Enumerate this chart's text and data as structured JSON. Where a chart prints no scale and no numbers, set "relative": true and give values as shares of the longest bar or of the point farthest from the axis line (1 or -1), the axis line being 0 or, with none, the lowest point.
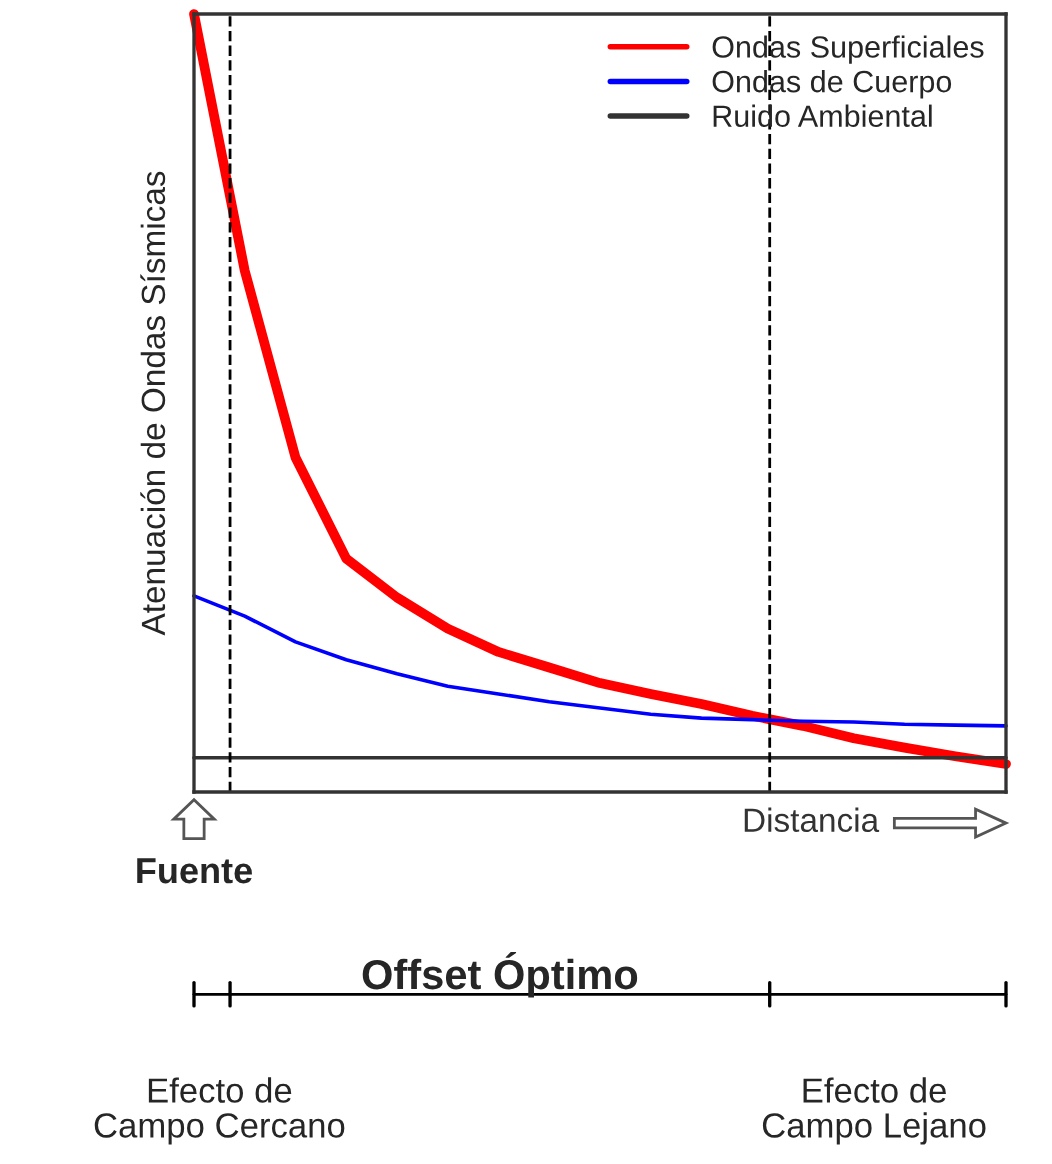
{
  "chart_data": {
    "type": "line",
    "relative": true,
    "ylabel": "Atenuación de Ondas Sísmicas",
    "xlabel": "Distancia",
    "categories": [
      null,
      null,
      null,
      null,
      null,
      null,
      null,
      null,
      null,
      null,
      null,
      null,
      null,
      null,
      null,
      null,
      null
    ],
    "series": [
      {
        "name": "Ondas Superficiales",
        "color": "#ff0000",
        "values": [
          1.0,
          0.67,
          0.43,
          0.3,
          0.25,
          0.21,
          0.18,
          0.16,
          0.14,
          0.126,
          0.113,
          0.098,
          0.085,
          0.069,
          0.057,
          0.046,
          0.036
        ]
      },
      {
        "name": "Ondas de Cuerpo",
        "color": "#0000ff",
        "values": [
          0.252,
          0.226,
          0.193,
          0.17,
          0.152,
          0.136,
          0.126,
          0.116,
          0.108,
          0.1,
          0.095,
          0.093,
          0.091,
          0.09,
          0.087,
          0.086,
          0.085
        ]
      },
      {
        "name": "Ruido Ambiental",
        "color": "#333333",
        "values": [
          0.044,
          0.044,
          0.044,
          0.044,
          0.044,
          0.044,
          0.044,
          0.044,
          0.044,
          0.044,
          0.044,
          0.044,
          0.044,
          0.044,
          0.044,
          0.044,
          0.044
        ]
      }
    ],
    "legend": "top right",
    "annotations": [
      "Fuente",
      "Offset Óptimo",
      "Efecto de\nCampo Cercano",
      "Efecto de\nCampo Lejano"
    ]
  }
}
